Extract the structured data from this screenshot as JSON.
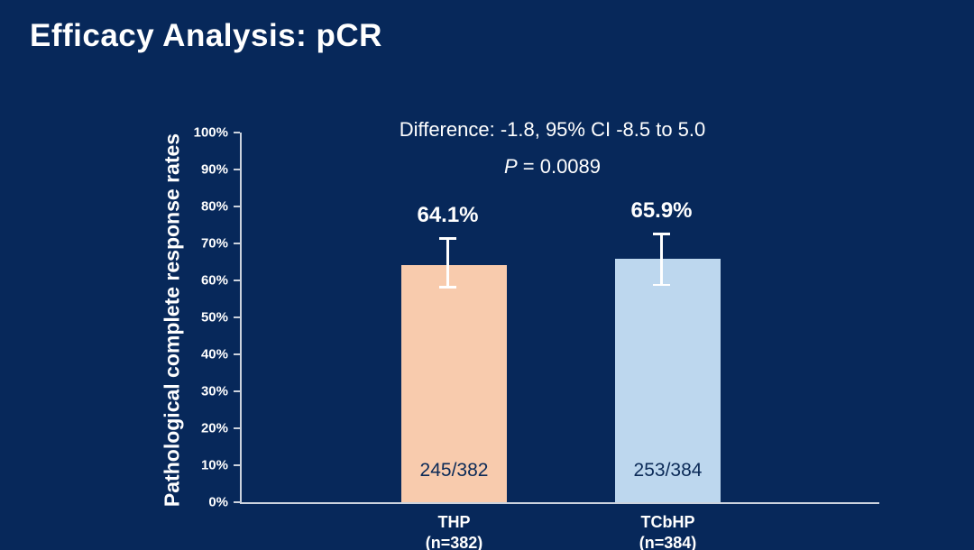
{
  "slide": {
    "title": "Efficacy Analysis: pCR"
  },
  "colors": {
    "background": "#07285a",
    "title_text": "#ffffff",
    "axis": "#ccd3de",
    "error_bar": "#ffffff",
    "count_label_text": "#0b2a57",
    "bar_thp": "#F8CBAD",
    "bar_tcbhp": "#BDD7EE"
  },
  "chart_data": {
    "type": "bar",
    "title": "",
    "xlabel": "",
    "ylabel": "Pathological complete response rates",
    "ylim": [
      0,
      100
    ],
    "grid": false,
    "legend": "none",
    "yticks": [
      0,
      10,
      20,
      30,
      40,
      50,
      60,
      70,
      80,
      90,
      100
    ],
    "ytick_labels": [
      "0%",
      "10%",
      "20%",
      "30%",
      "40%",
      "50%",
      "60%",
      "70%",
      "80%",
      "90%",
      "100%"
    ],
    "categories": [
      "THP",
      "TCbHP"
    ],
    "category_sublabels": [
      "（n=382）",
      "（n=384）"
    ],
    "values": [
      64.1,
      65.9
    ],
    "value_labels": [
      "64.1%",
      "65.9%"
    ],
    "count_labels": [
      "245/382",
      "253/384"
    ],
    "ci_upper": [
      71.7,
      72.9
    ],
    "ci_lower": [
      57.9,
      58.5
    ],
    "bar_colors": [
      "#F8CBAD",
      "#BDD7EE"
    ],
    "annotations": {
      "difference": "Difference: -1.8, 95% CI -8.5 to 5.0",
      "p_symbol": "P",
      "p_rest": " = 0.0089"
    }
  }
}
